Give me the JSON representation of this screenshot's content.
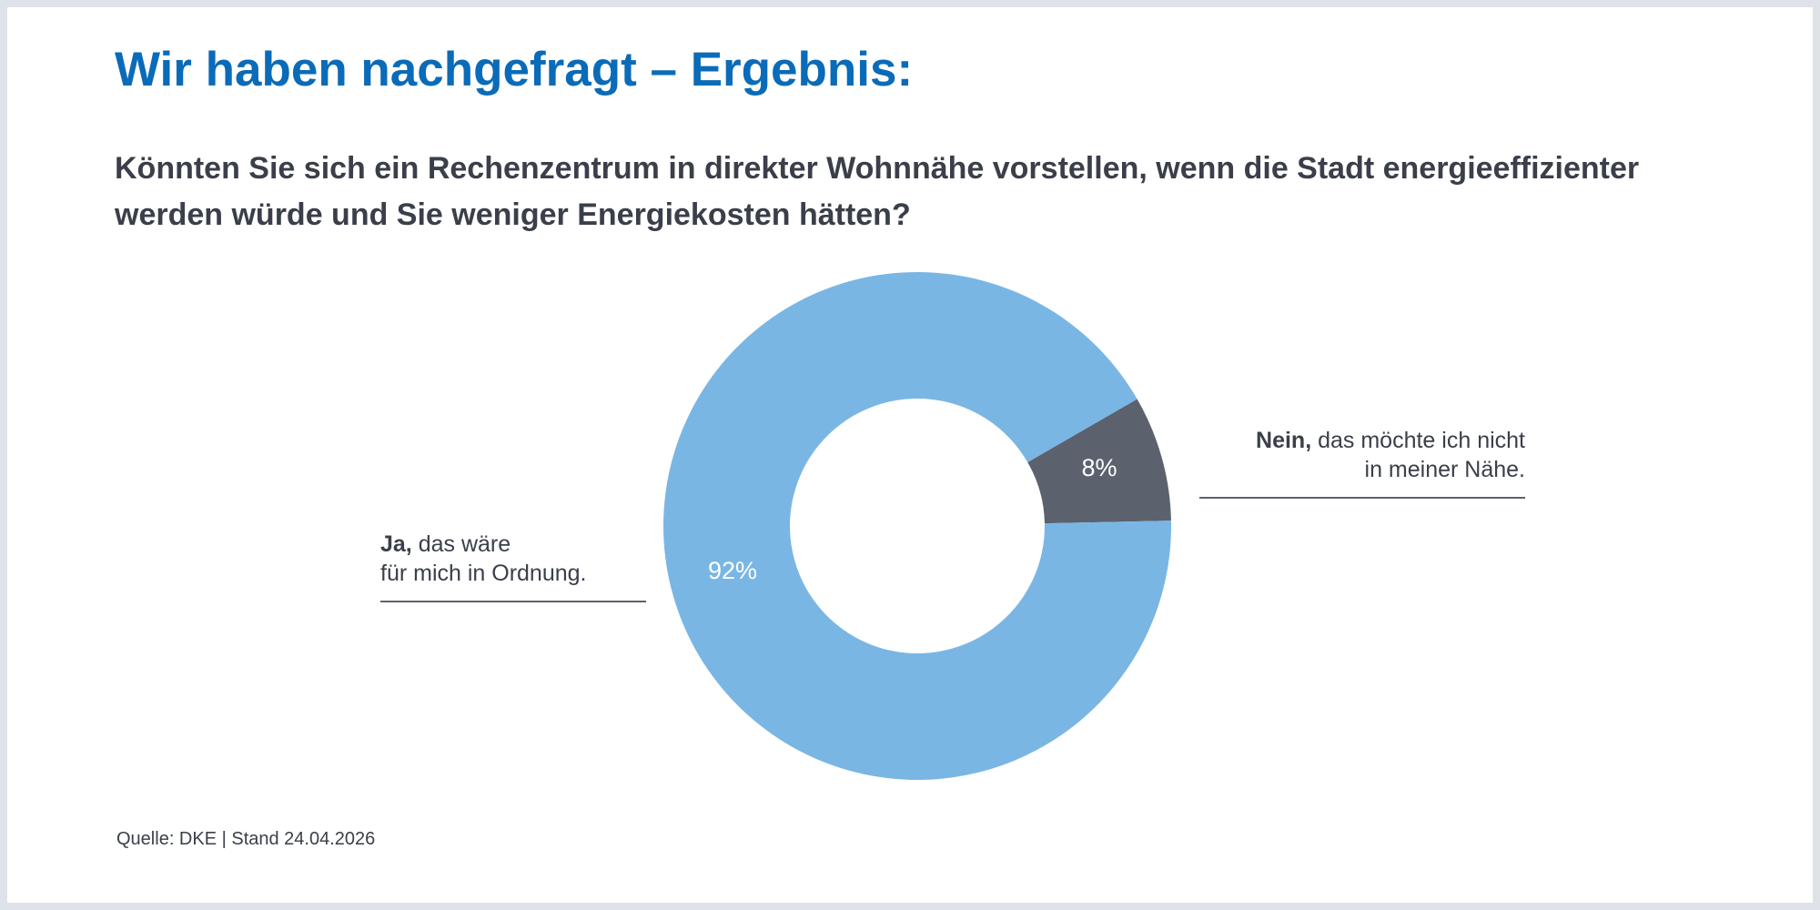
{
  "header": {
    "title": "Wir haben nachgefragt – Ergebnis:"
  },
  "chart_data": {
    "type": "pie",
    "variant": "donut",
    "title": "Könnten Sie sich ein Rechenzentrum in direkter Wohnnähe vorstellen, wenn die Stadt energieeffizienter werden würde und Sie weniger Energiekosten hätten?",
    "categories": [
      "Nein",
      "Ja"
    ],
    "values": [
      8,
      92
    ],
    "value_labels": [
      "8%",
      "92%"
    ],
    "colors": [
      "#5b626e",
      "#7ab6e4"
    ],
    "legend": [
      {
        "bold": "Nein,",
        "text_line1": " das möchte ich nicht",
        "text_line2": "in meiner Nähe."
      },
      {
        "bold": "Ja,",
        "text_line1": " das wäre",
        "text_line2": "für mich in Ordnung."
      }
    ],
    "start_angle_deg": 60
  },
  "footer": {
    "source": "Quelle: DKE | Stand 24.04.2026"
  }
}
